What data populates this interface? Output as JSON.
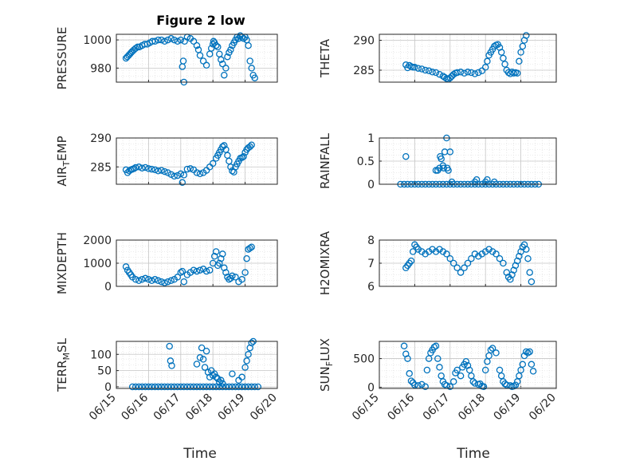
{
  "figure_title": "Figure 2 low",
  "xlabel": "Time",
  "marker_color": "#0072BD",
  "chart_data": [
    {
      "id": "pressure",
      "type": "scatter",
      "ylabel": "PRESSURE",
      "ylim": [
        970,
        1004
      ],
      "yticks": [
        980,
        1000
      ],
      "yticklabels": [
        "980",
        "1000"
      ],
      "xlim": [
        0,
        5
      ],
      "grid": true,
      "x": [
        0.3,
        0.34,
        0.38,
        0.42,
        0.46,
        0.5,
        0.55,
        0.6,
        0.66,
        0.72,
        0.8,
        0.88,
        0.96,
        1.04,
        1.12,
        1.2,
        1.3,
        1.4,
        1.5,
        1.6,
        1.7,
        1.8,
        1.9,
        2.0,
        2.05,
        2.08,
        2.1,
        2.12,
        2.2,
        2.3,
        2.4,
        2.5,
        2.55,
        2.6,
        2.7,
        2.8,
        2.9,
        2.95,
        3.0,
        3.02,
        3.05,
        3.1,
        3.15,
        3.2,
        3.25,
        3.3,
        3.35,
        3.4,
        3.45,
        3.5,
        3.55,
        3.6,
        3.65,
        3.7,
        3.75,
        3.8,
        3.85,
        3.9,
        3.95,
        4.0,
        4.05,
        4.1,
        4.15,
        4.2,
        4.25,
        4.3
      ],
      "y": [
        987,
        988,
        989,
        990,
        991,
        992,
        993,
        994,
        995,
        995,
        996,
        997,
        997,
        998,
        999,
        999,
        1000,
        1000,
        999,
        1000,
        1001,
        1000,
        999,
        1000,
        981,
        985,
        970,
        999,
        1002,
        1001,
        999,
        996,
        993,
        989,
        985,
        982,
        990,
        994,
        997,
        999,
        998,
        996,
        995,
        990,
        986,
        983,
        975,
        980,
        988,
        991,
        993,
        996,
        998,
        1000,
        1002,
        1001,
        1003,
        1002,
        1001,
        1002,
        1000,
        996,
        985,
        980,
        975,
        973
      ]
    },
    {
      "id": "theta",
      "type": "scatter",
      "ylabel": "THETA",
      "ylim": [
        283,
        291
      ],
      "yticks": [
        285,
        290
      ],
      "yticklabels": [
        "285",
        "290"
      ],
      "xlim": [
        0,
        5
      ],
      "grid": true,
      "x": [
        0.75,
        0.8,
        0.85,
        0.9,
        0.95,
        1.0,
        1.1,
        1.2,
        1.3,
        1.4,
        1.5,
        1.6,
        1.7,
        1.8,
        1.85,
        1.9,
        1.95,
        2.0,
        2.05,
        2.1,
        2.15,
        2.2,
        2.3,
        2.4,
        2.5,
        2.6,
        2.7,
        2.8,
        2.9,
        3.0,
        3.05,
        3.1,
        3.15,
        3.2,
        3.25,
        3.3,
        3.35,
        3.4,
        3.45,
        3.5,
        3.55,
        3.6,
        3.65,
        3.7,
        3.75,
        3.8,
        3.85,
        3.9,
        3.95,
        4.0,
        4.05,
        4.1,
        4.15
      ],
      "y": [
        285.9,
        285.4,
        285.8,
        285.6,
        285.5,
        285.5,
        285.3,
        285.2,
        285.0,
        284.9,
        284.7,
        284.6,
        284.3,
        284.0,
        283.8,
        283.6,
        283.5,
        283.7,
        284.0,
        284.3,
        284.5,
        284.6,
        284.7,
        284.5,
        284.7,
        284.6,
        284.4,
        284.6,
        284.9,
        285.5,
        286.5,
        287.5,
        288.0,
        288.5,
        289.0,
        289.2,
        289.3,
        288.8,
        288.0,
        287.0,
        286.0,
        285.0,
        284.6,
        284.4,
        284.7,
        284.5,
        284.6,
        284.5,
        286.5,
        288.0,
        289.0,
        290.0,
        290.8
      ]
    },
    {
      "id": "air_temp",
      "type": "scatter",
      "ylabel": "AIR_TEMP",
      "ylim": [
        282,
        290
      ],
      "yticks": [
        285,
        290
      ],
      "yticklabels": [
        "285",
        "290"
      ],
      "xlim": [
        0,
        5
      ],
      "grid": true,
      "x": [
        0.3,
        0.35,
        0.4,
        0.45,
        0.5,
        0.55,
        0.6,
        0.7,
        0.8,
        0.9,
        1.0,
        1.1,
        1.2,
        1.3,
        1.4,
        1.5,
        1.6,
        1.7,
        1.8,
        1.9,
        2.0,
        2.05,
        2.1,
        2.2,
        2.3,
        2.4,
        2.5,
        2.6,
        2.7,
        2.8,
        2.9,
        3.0,
        3.1,
        3.15,
        3.2,
        3.25,
        3.3,
        3.35,
        3.4,
        3.45,
        3.5,
        3.55,
        3.6,
        3.65,
        3.7,
        3.75,
        3.8,
        3.85,
        3.9,
        3.95,
        4.0,
        4.05,
        4.1,
        4.15,
        4.2
      ],
      "y": [
        284.5,
        284.0,
        284.3,
        284.5,
        284.6,
        284.7,
        284.9,
        285.0,
        284.8,
        284.9,
        284.7,
        284.6,
        284.5,
        284.3,
        284.4,
        284.2,
        284.0,
        283.7,
        283.4,
        283.5,
        283.8,
        282.3,
        283.6,
        284.6,
        284.7,
        284.5,
        284.0,
        283.8,
        284.0,
        284.4,
        285.0,
        285.6,
        286.5,
        287.0,
        287.5,
        288.0,
        288.5,
        288.7,
        288.0,
        287.0,
        286.0,
        285.0,
        284.3,
        284.1,
        285.0,
        285.5,
        286.0,
        286.5,
        286.6,
        286.8,
        287.5,
        288.0,
        288.3,
        288.5,
        288.8
      ]
    },
    {
      "id": "rainfall",
      "type": "scatter",
      "ylabel": "RAINFALL",
      "ylim": [
        0,
        1
      ],
      "yticks": [
        0,
        0.5,
        1
      ],
      "yticklabels": [
        "0",
        "0.5",
        "1"
      ],
      "xlim": [
        0,
        5
      ],
      "grid": true,
      "x": [
        0.6,
        0.7,
        0.8,
        0.9,
        1.0,
        1.1,
        1.2,
        1.3,
        1.4,
        1.5,
        1.6,
        1.7,
        1.8,
        1.9,
        2.0,
        2.1,
        2.2,
        2.3,
        2.4,
        2.5,
        2.6,
        2.7,
        2.8,
        2.9,
        3.0,
        3.1,
        3.2,
        3.3,
        3.4,
        3.5,
        3.6,
        3.7,
        3.8,
        3.9,
        4.0,
        4.1,
        4.2,
        4.3,
        4.4,
        4.5,
        0.75,
        1.6,
        1.7,
        1.75,
        1.8,
        1.85,
        1.9,
        1.95,
        1.65,
        2.0,
        2.05,
        1.72,
        1.82,
        1.92,
        2.7,
        3.0,
        3.25,
        2.75,
        3.05
      ],
      "y": [
        0,
        0,
        0,
        0,
        0,
        0,
        0,
        0,
        0,
        0,
        0,
        0,
        0,
        0,
        0,
        0,
        0,
        0,
        0,
        0,
        0,
        0,
        0,
        0,
        0,
        0,
        0,
        0,
        0,
        0,
        0,
        0,
        0,
        0,
        0,
        0,
        0,
        0,
        0,
        0,
        0.6,
        0.3,
        0.35,
        0.55,
        0.4,
        0.7,
        1.0,
        0.3,
        0.3,
        0.7,
        0.05,
        0.6,
        0.35,
        0.35,
        0.05,
        0.05,
        0.05,
        0.1,
        0.1
      ]
    },
    {
      "id": "mixdepth",
      "type": "scatter",
      "ylabel": "MIXDEPTH",
      "ylim": [
        0,
        2000
      ],
      "yticks": [
        0,
        1000,
        2000
      ],
      "yticklabels": [
        "0",
        "1000",
        "2000"
      ],
      "xlim": [
        0,
        5
      ],
      "grid": true,
      "x": [
        0.3,
        0.35,
        0.4,
        0.45,
        0.5,
        0.6,
        0.7,
        0.8,
        0.9,
        1.0,
        1.1,
        1.2,
        1.3,
        1.4,
        1.5,
        1.6,
        1.7,
        1.8,
        1.9,
        2.0,
        2.05,
        2.1,
        2.2,
        2.3,
        2.4,
        2.5,
        2.6,
        2.7,
        2.8,
        2.9,
        3.0,
        3.05,
        3.1,
        3.15,
        3.2,
        3.25,
        3.3,
        3.35,
        3.4,
        3.45,
        3.5,
        3.55,
        3.6,
        3.7,
        3.8,
        3.9,
        4.0,
        4.05,
        4.1,
        4.15,
        4.2
      ],
      "y": [
        850,
        700,
        600,
        500,
        400,
        300,
        250,
        300,
        350,
        300,
        250,
        300,
        250,
        200,
        150,
        200,
        250,
        300,
        400,
        600,
        650,
        200,
        500,
        600,
        700,
        650,
        700,
        750,
        650,
        700,
        1000,
        1300,
        1500,
        900,
        1000,
        1200,
        1400,
        800,
        600,
        400,
        300,
        350,
        450,
        400,
        200,
        300,
        600,
        1200,
        1600,
        1650,
        1700
      ]
    },
    {
      "id": "h2omixra",
      "type": "scatter",
      "ylabel": "H2OMIXRA",
      "ylim": [
        6,
        8
      ],
      "yticks": [
        6,
        7,
        8
      ],
      "yticklabels": [
        "6",
        "7",
        "8"
      ],
      "xlim": [
        0,
        5
      ],
      "grid": true,
      "x": [
        0.75,
        0.8,
        0.85,
        0.9,
        0.95,
        1.0,
        1.05,
        1.1,
        1.2,
        1.3,
        1.4,
        1.5,
        1.6,
        1.7,
        1.8,
        1.9,
        2.0,
        2.1,
        2.2,
        2.3,
        2.4,
        2.5,
        2.6,
        2.7,
        2.8,
        2.9,
        3.0,
        3.1,
        3.2,
        3.3,
        3.4,
        3.5,
        3.6,
        3.65,
        3.7,
        3.75,
        3.8,
        3.85,
        3.9,
        3.95,
        4.0,
        4.05,
        4.1,
        4.15,
        4.2,
        4.25,
        4.3
      ],
      "y": [
        6.8,
        6.9,
        7.0,
        7.1,
        7.5,
        7.8,
        7.7,
        7.6,
        7.5,
        7.4,
        7.5,
        7.6,
        7.5,
        7.6,
        7.5,
        7.4,
        7.2,
        7.0,
        6.8,
        6.6,
        6.8,
        7.0,
        7.2,
        7.4,
        7.3,
        7.4,
        7.5,
        7.6,
        7.5,
        7.4,
        7.2,
        7.0,
        6.6,
        6.4,
        6.3,
        6.5,
        6.7,
        6.9,
        7.1,
        7.3,
        7.5,
        7.7,
        7.8,
        7.6,
        7.2,
        6.6,
        6.2
      ]
    },
    {
      "id": "terr_msl",
      "type": "scatter",
      "ylabel": "TERR_MSL",
      "ylim": [
        -5,
        140
      ],
      "yticks": [
        0,
        50,
        100
      ],
      "yticklabels": [
        "0",
        "50",
        "100"
      ],
      "xlim": [
        0,
        5
      ],
      "grid": true,
      "x": [
        0.5,
        0.6,
        0.7,
        0.8,
        0.9,
        1.0,
        1.1,
        1.2,
        1.3,
        1.4,
        1.5,
        1.6,
        1.7,
        1.8,
        1.9,
        2.0,
        2.1,
        2.2,
        2.3,
        2.4,
        2.5,
        2.6,
        2.7,
        2.8,
        2.9,
        3.0,
        3.1,
        3.2,
        3.3,
        3.4,
        3.5,
        3.6,
        3.7,
        3.8,
        3.9,
        4.0,
        4.1,
        4.2,
        4.3,
        4.4,
        1.65,
        1.68,
        1.72,
        2.5,
        2.6,
        2.65,
        2.7,
        2.75,
        2.8,
        2.85,
        2.9,
        2.95,
        3.0,
        3.05,
        3.1,
        3.15,
        3.2,
        3.25,
        3.3,
        3.6,
        3.8,
        3.9,
        4.0,
        4.05,
        4.1,
        4.15,
        4.2,
        4.25
      ],
      "y": [
        0,
        0,
        0,
        0,
        0,
        0,
        0,
        0,
        0,
        0,
        0,
        0,
        0,
        0,
        0,
        0,
        0,
        0,
        0,
        0,
        0,
        0,
        0,
        0,
        0,
        0,
        0,
        0,
        0,
        0,
        0,
        0,
        0,
        0,
        0,
        0,
        0,
        0,
        0,
        0,
        125,
        80,
        65,
        70,
        90,
        120,
        85,
        60,
        110,
        45,
        30,
        50,
        35,
        40,
        30,
        25,
        15,
        20,
        10,
        40,
        20,
        30,
        60,
        80,
        100,
        120,
        135,
        140
      ]
    },
    {
      "id": "sun_flux",
      "type": "scatter",
      "ylabel": "SUN_FLUX",
      "ylim": [
        -20,
        800
      ],
      "yticks": [
        0,
        500
      ],
      "yticklabels": [
        "0",
        "500"
      ],
      "xlim": [
        0,
        5
      ],
      "grid": true,
      "x": [
        0.7,
        0.75,
        0.8,
        0.85,
        0.9,
        0.95,
        1.0,
        1.1,
        1.2,
        1.3,
        1.35,
        1.4,
        1.45,
        1.5,
        1.55,
        1.6,
        1.65,
        1.7,
        1.75,
        1.8,
        1.85,
        1.9,
        2.0,
        2.1,
        2.15,
        2.2,
        2.3,
        2.35,
        2.4,
        2.45,
        2.5,
        2.55,
        2.6,
        2.65,
        2.7,
        2.8,
        2.85,
        2.9,
        2.95,
        3.0,
        3.05,
        3.1,
        3.15,
        3.2,
        3.3,
        3.4,
        3.45,
        3.5,
        3.55,
        3.6,
        3.7,
        3.75,
        3.8,
        3.85,
        3.9,
        3.95,
        4.0,
        4.05,
        4.1,
        4.15,
        4.2,
        4.25,
        4.3,
        4.35
      ],
      "y": [
        720,
        580,
        500,
        240,
        110,
        80,
        40,
        30,
        50,
        10,
        300,
        500,
        600,
        650,
        700,
        720,
        500,
        350,
        200,
        100,
        50,
        30,
        10,
        100,
        250,
        300,
        200,
        350,
        400,
        450,
        380,
        300,
        200,
        100,
        70,
        50,
        60,
        20,
        10,
        300,
        450,
        550,
        650,
        680,
        600,
        300,
        200,
        100,
        60,
        40,
        30,
        10,
        20,
        40,
        100,
        200,
        300,
        400,
        550,
        620,
        600,
        620,
        400,
        280
      ]
    }
  ],
  "xticklabels": [
    "06/15",
    "06/16",
    "06/17",
    "06/18",
    "06/19",
    "06/20"
  ]
}
